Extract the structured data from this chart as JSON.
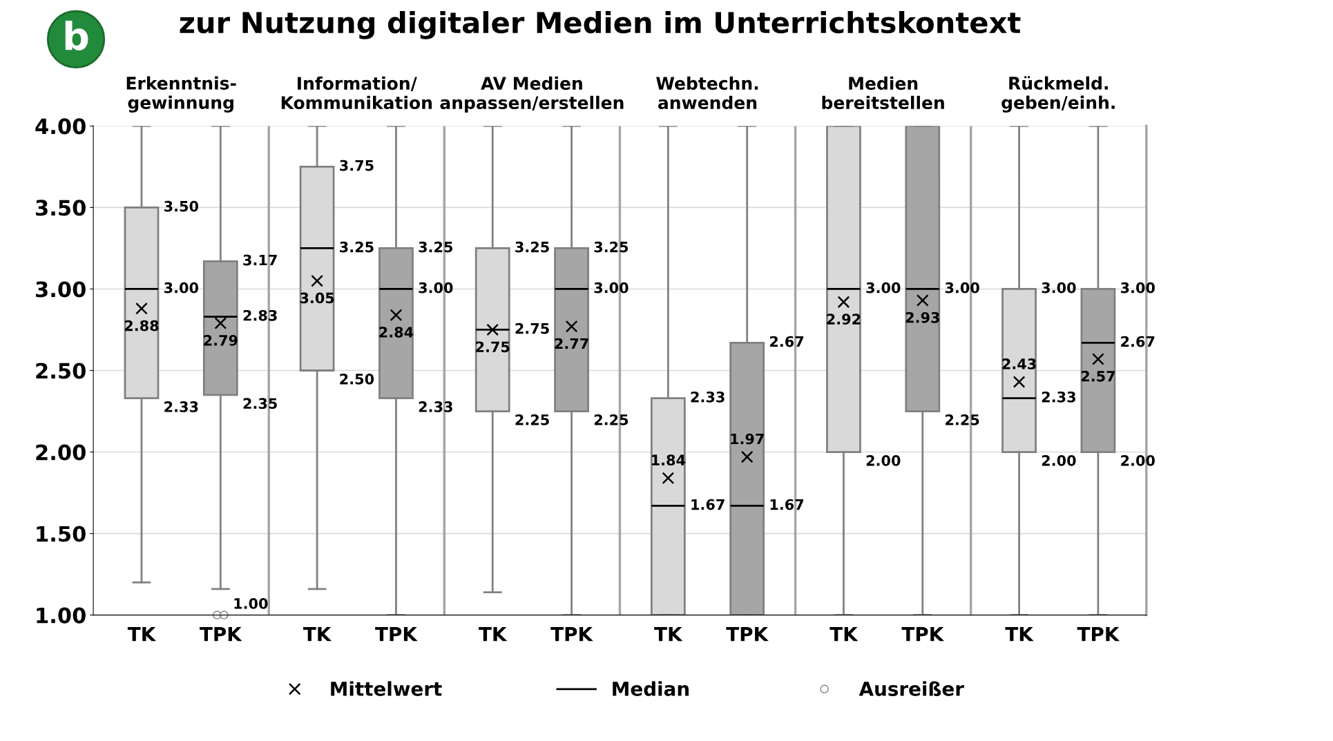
{
  "chart_data": {
    "type": "box",
    "title": "zur Nutzung digitaler Medien im Unterrichtskontext",
    "categories": [
      "Erkenntnis-\ngewinnung",
      "Information/\nKommunikation",
      "AV Medien\nanpassen/erstellen",
      "Webtechn.\nanwenden",
      "Medien\nbereitstellen",
      "Rückmeld.\ngeben/einh."
    ],
    "series": [
      {
        "name": "TK",
        "color": "#d9d9d9",
        "boxes": [
          {
            "low": 1.2,
            "q1": 2.33,
            "median": 3.0,
            "q3": 3.5,
            "high": 4.0,
            "mean": 2.88
          },
          {
            "low": 1.16,
            "q1": 2.5,
            "median": 3.25,
            "q3": 3.75,
            "high": 4.0,
            "mean": 3.05
          },
          {
            "low": 1.14,
            "q1": 2.25,
            "median": 2.75,
            "q3": 3.25,
            "high": 4.0,
            "mean": 2.75
          },
          {
            "low": 1.0,
            "q1": 1.0,
            "median": 1.67,
            "q3": 2.33,
            "high": 4.0,
            "mean": 1.84
          },
          {
            "low": 1.0,
            "q1": 2.0,
            "median": 3.0,
            "q3": 4.0,
            "high": 4.0,
            "mean": 2.92
          },
          {
            "low": 1.0,
            "q1": 2.0,
            "median": 2.33,
            "q3": 3.0,
            "high": 4.0,
            "mean": 2.43
          }
        ],
        "value_labels": [
          [
            "3.50",
            "3.00",
            "2.33",
            "2.88",
            null
          ],
          [
            "3.75",
            "3.25",
            "2.50",
            "3.05",
            null
          ],
          [
            "3.25",
            "2.75",
            "2.25",
            "2.75",
            null
          ],
          [
            "2.33",
            "1.67",
            null,
            "1.84",
            null
          ],
          [
            null,
            "3.00",
            "2.00",
            "2.92",
            null
          ],
          [
            "3.00",
            "2.33",
            "2.00",
            "2.43",
            null
          ]
        ]
      },
      {
        "name": "TPK",
        "color": "#a6a6a6",
        "boxes": [
          {
            "low": 1.16,
            "q1": 2.35,
            "median": 2.83,
            "q3": 3.17,
            "high": 4.0,
            "mean": 2.79,
            "outliers": [
              1.0,
              1.0
            ]
          },
          {
            "low": 1.0,
            "q1": 2.33,
            "median": 3.0,
            "q3": 3.25,
            "high": 4.0,
            "mean": 2.84
          },
          {
            "low": 1.0,
            "q1": 2.25,
            "median": 3.0,
            "q3": 3.25,
            "high": 4.0,
            "mean": 2.77
          },
          {
            "low": 1.0,
            "q1": 1.0,
            "median": 1.67,
            "q3": 2.67,
            "high": 4.0,
            "mean": 1.97
          },
          {
            "low": 1.0,
            "q1": 2.25,
            "median": 3.0,
            "q3": 4.0,
            "high": 4.0,
            "mean": 2.93
          },
          {
            "low": 1.0,
            "q1": 2.0,
            "median": 2.67,
            "q3": 3.0,
            "high": 4.0,
            "mean": 2.57
          }
        ],
        "value_labels": [
          [
            "3.17",
            "2.83",
            "2.35",
            "2.79",
            "1.00"
          ],
          [
            "3.25",
            "3.00",
            "2.33",
            "2.84",
            null
          ],
          [
            "3.25",
            "3.00",
            "2.25",
            "2.77",
            null
          ],
          [
            "2.67",
            "1.67",
            null,
            "1.97",
            null
          ],
          [
            null,
            "3.00",
            "2.25",
            "2.93",
            null
          ],
          [
            "3.00",
            "2.67",
            "2.00",
            "2.57",
            null
          ]
        ]
      }
    ],
    "ylim": [
      1,
      4
    ],
    "yticks": [
      {
        "value": 1,
        "label": "1.00"
      },
      {
        "value": 1.5,
        "label": "1.50"
      },
      {
        "value": 2,
        "label": "2.00"
      },
      {
        "value": 2.5,
        "label": "2.50"
      },
      {
        "value": 3,
        "label": "3.00"
      },
      {
        "value": 3.5,
        "label": "3.50"
      },
      {
        "value": 4,
        "label": "4.00"
      }
    ],
    "grid": "y",
    "legend": "bottom",
    "annotations": [
      "b",
      "Mittelwert",
      "Median",
      "Ausreißer"
    ]
  }
}
